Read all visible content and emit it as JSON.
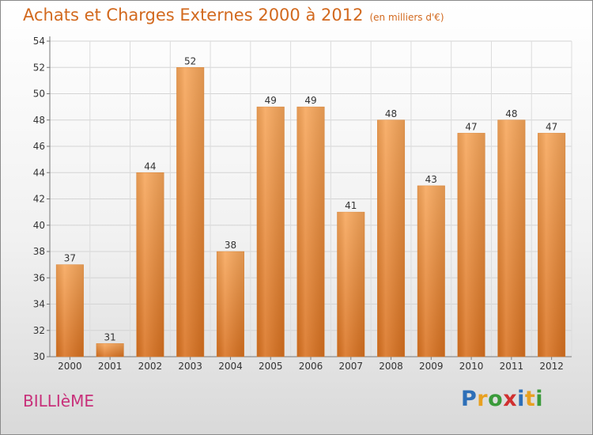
{
  "header": {
    "title": "Achats et Charges Externes 2000 à 2012",
    "units": "(en milliers d'€)"
  },
  "footer": {
    "commune": "BILLIèME",
    "logo_letters": [
      "P",
      "r",
      "o",
      "x",
      "i",
      "t",
      "i"
    ],
    "logo_colors": [
      "#2d6fb8",
      "#e8a020",
      "#3a9a3a",
      "#d03030",
      "#2d6fb8",
      "#e8a020",
      "#3a9a3a"
    ]
  },
  "chart_data": {
    "type": "bar",
    "categories": [
      "2000",
      "2001",
      "2002",
      "2003",
      "2004",
      "2005",
      "2006",
      "2007",
      "2008",
      "2009",
      "2010",
      "2011",
      "2012"
    ],
    "values": [
      37,
      31,
      44,
      52,
      38,
      49,
      49,
      41,
      48,
      43,
      47,
      48,
      47
    ],
    "title": "Achats et Charges Externes 2000 à 2012",
    "xlabel": "",
    "ylabel": "",
    "ylim": [
      30,
      54
    ],
    "yticks": [
      30,
      32,
      34,
      36,
      38,
      40,
      42,
      44,
      46,
      48,
      50,
      52,
      54
    ],
    "grid": true,
    "bar_color_top": "#f7a65a",
    "bar_color_bottom": "#d9711f",
    "label_color": "#333333"
  }
}
